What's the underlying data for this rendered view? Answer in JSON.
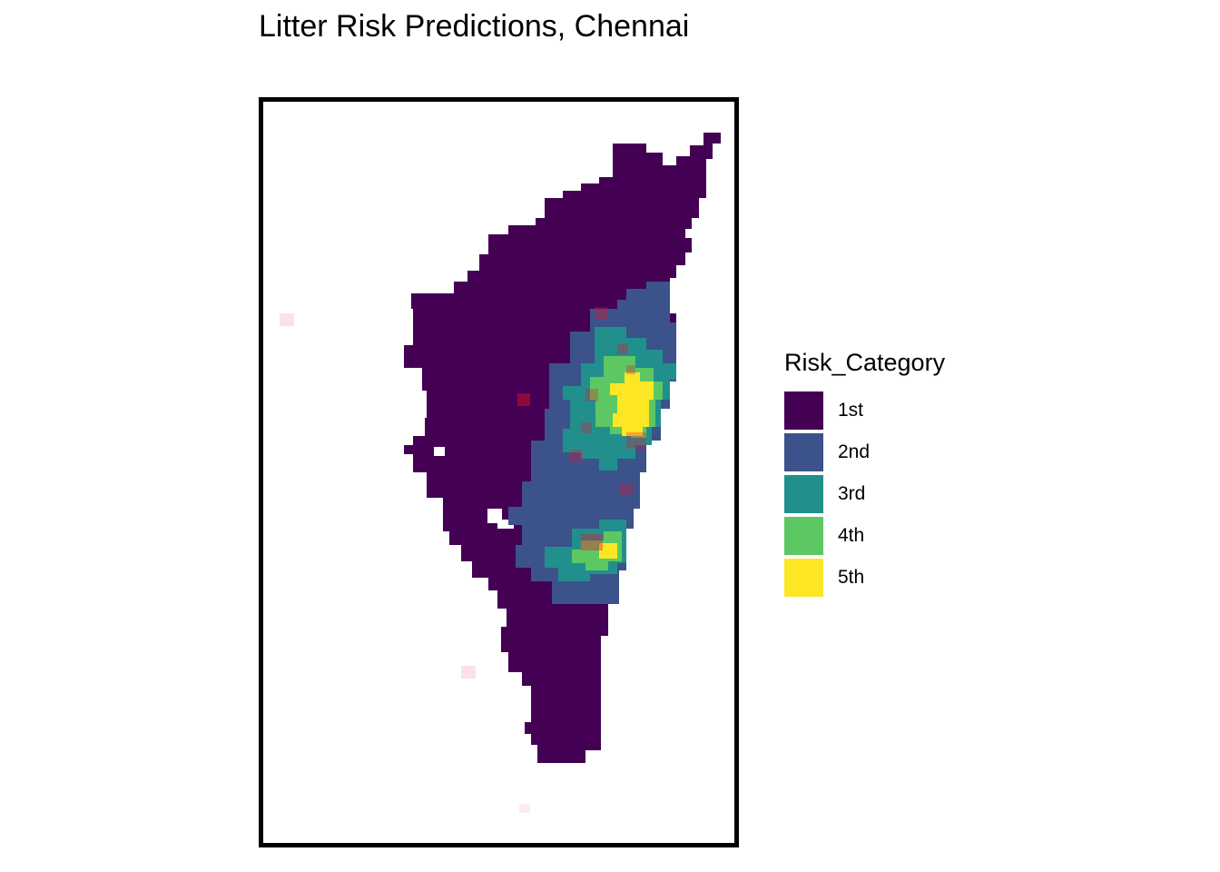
{
  "title": "Litter Risk Predictions, Chennai",
  "legend": {
    "title": "Risk_Category",
    "items": [
      {
        "label": "1st",
        "color": "#440154"
      },
      {
        "label": "2nd",
        "color": "#3b528b"
      },
      {
        "label": "3rd",
        "color": "#21908c"
      },
      {
        "label": "4th",
        "color": "#5dc863"
      },
      {
        "label": "5th",
        "color": "#fde725"
      }
    ]
  },
  "map": {
    "type": "raster-risk-grid",
    "outline_color": "#000000",
    "litter_point_color": "#e8112d",
    "risk_zones": [
      {
        "category": "2nd",
        "area": "central-east coastal strip"
      },
      {
        "category": "3rd",
        "area": "central-east hotspot ring"
      },
      {
        "category": "4th",
        "area": "central-east hotspot"
      },
      {
        "category": "5th",
        "area": "central-east core"
      },
      {
        "category": "3rd",
        "area": "southern hotspot ring"
      },
      {
        "category": "5th",
        "area": "southern core"
      }
    ]
  }
}
